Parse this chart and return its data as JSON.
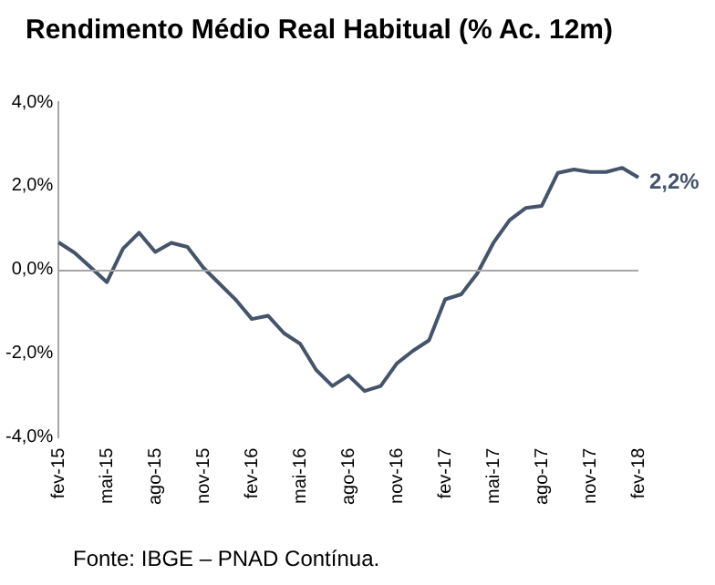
{
  "chart_data": {
    "type": "line",
    "title": "Rendimento Médio Real Habitual (% Ac. 12m)",
    "categories": [
      "fev-15",
      null,
      null,
      "mai-15",
      null,
      null,
      "ago-15",
      null,
      null,
      "nov-15",
      null,
      null,
      "fev-16",
      null,
      null,
      "mai-16",
      null,
      null,
      "ago-16",
      null,
      null,
      "nov-16",
      null,
      null,
      "fev-17",
      null,
      null,
      "mai-17",
      null,
      null,
      "ago-17",
      null,
      null,
      "nov-17",
      null,
      null,
      "fev-18"
    ],
    "series": [
      {
        "color": "#44546a",
        "values": [
          0.65,
          0.4,
          0.05,
          -0.3,
          0.5,
          0.88,
          0.42,
          0.64,
          0.54,
          0.04,
          -0.34,
          -0.72,
          -1.18,
          -1.1,
          -1.52,
          -1.77,
          -2.4,
          -2.78,
          -2.53,
          -2.9,
          -2.78,
          -2.24,
          -1.94,
          -1.69,
          -0.71,
          -0.59,
          -0.09,
          0.64,
          1.18,
          1.47,
          1.52,
          2.31,
          2.39,
          2.33,
          2.33,
          2.43,
          2.2
        ]
      }
    ],
    "ylim": [
      -4,
      4
    ],
    "yticks": [
      {
        "value": -4,
        "label": "-4,0%"
      },
      {
        "value": -2,
        "label": "-2,0%"
      },
      {
        "value": 0,
        "label": "0,0%"
      },
      {
        "value": 2,
        "label": "2,0%"
      },
      {
        "value": 4,
        "label": "4,0%"
      }
    ],
    "grid": false,
    "ref_lines": [
      {
        "axis": "y",
        "value": 0,
        "color": "#a6a6a6"
      }
    ],
    "legend": false,
    "marker": "none",
    "line_style": "solid",
    "annotations": [
      {
        "text": "2,2%",
        "x": "fev-18",
        "y": 2.2
      },
      "Fonte: IBGE – PNAD Contínua."
    ]
  }
}
